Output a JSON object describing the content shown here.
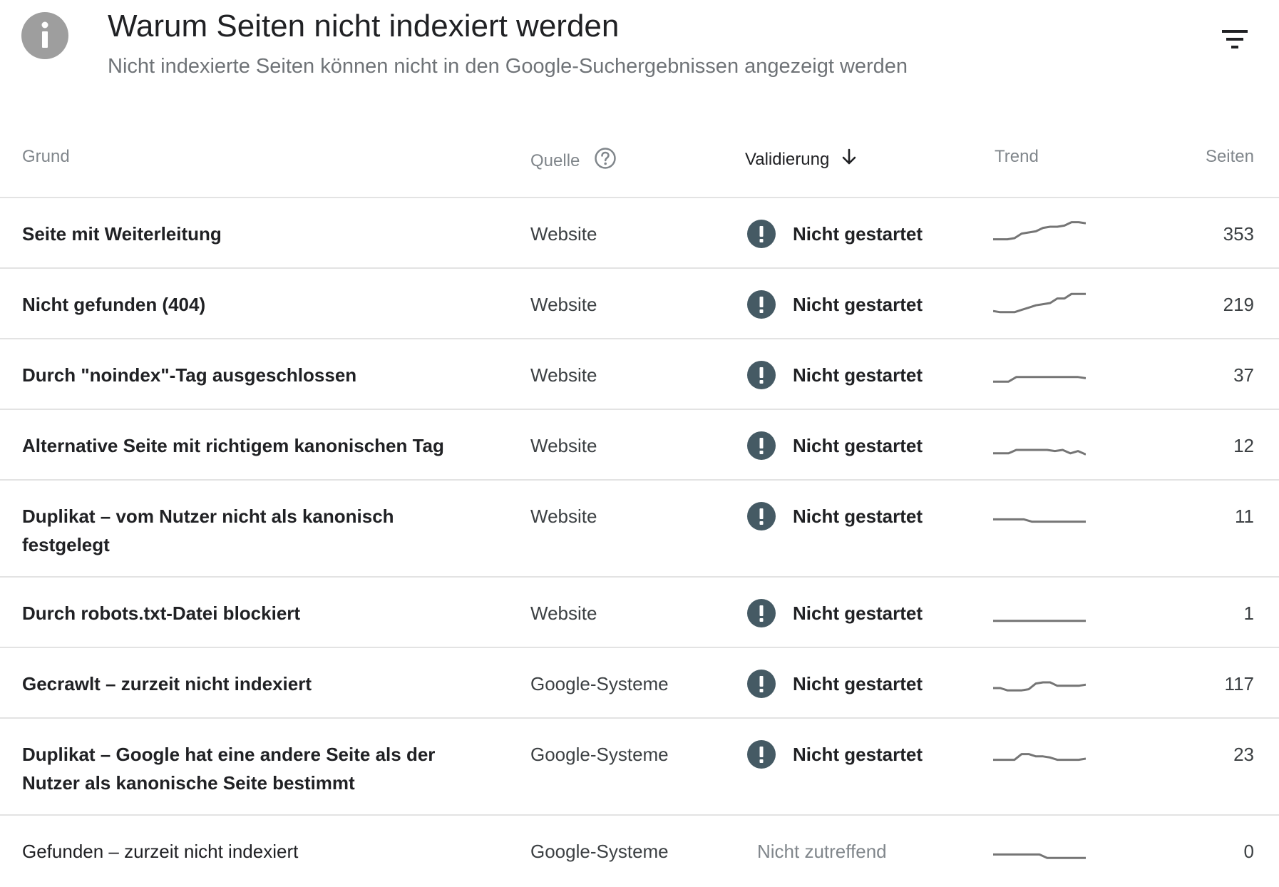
{
  "header": {
    "title": "Warum Seiten nicht indexiert werden",
    "subtitle": "Nicht indexierte Seiten können nicht in den Google-Suchergebnissen angezeigt werden"
  },
  "columns": {
    "grund": "Grund",
    "quelle": "Quelle",
    "validierung": "Validierung",
    "trend": "Trend",
    "seiten": "Seiten"
  },
  "rows": [
    {
      "grund": "Seite mit Weiterleitung",
      "quelle": "Website",
      "validierung": "Nicht gestartet",
      "seiten": "353",
      "trend": [
        0.2,
        0.2,
        0.2,
        0.25,
        0.45,
        0.5,
        0.55,
        0.7,
        0.75,
        0.75,
        0.8,
        0.95,
        0.95,
        0.9
      ]
    },
    {
      "grund": "Nicht gefunden (404)",
      "quelle": "Website",
      "validierung": "Nicht gestartet",
      "seiten": "219",
      "trend": [
        0.15,
        0.1,
        0.1,
        0.1,
        0.2,
        0.3,
        0.4,
        0.45,
        0.5,
        0.7,
        0.7,
        0.9,
        0.9,
        0.9
      ]
    },
    {
      "grund": "Durch \"noindex\"-Tag ausgeschlossen",
      "quelle": "Website",
      "validierung": "Nicht gestartet",
      "seiten": "37",
      "trend": [
        0.15,
        0.15,
        0.15,
        0.35,
        0.35,
        0.35,
        0.35,
        0.35,
        0.35,
        0.35,
        0.35,
        0.35,
        0.3
      ]
    },
    {
      "grund": "Alternative Seite mit richtigem kanonischen Tag",
      "quelle": "Website",
      "validierung": "Nicht gestartet",
      "seiten": "12",
      "trend": [
        0.1,
        0.1,
        0.1,
        0.25,
        0.25,
        0.25,
        0.25,
        0.25,
        0.2,
        0.25,
        0.1,
        0.2,
        0.05
      ]
    },
    {
      "grund": "Duplikat – vom Nutzer nicht als kanonisch festgelegt",
      "quelle": "Website",
      "validierung": "Nicht gestartet",
      "seiten": "11",
      "trend": [
        0.3,
        0.3,
        0.3,
        0.3,
        0.3,
        0.2,
        0.2,
        0.2,
        0.2,
        0.2,
        0.2,
        0.2,
        0.2
      ]
    },
    {
      "grund": "Durch robots.txt-Datei blockiert",
      "quelle": "Website",
      "validierung": "Nicht gestartet",
      "seiten": "1",
      "trend": [
        0.1,
        0.1,
        0.1,
        0.1,
        0.1,
        0.1,
        0.1,
        0.1,
        0.1,
        0.1,
        0.1,
        0.1,
        0.1
      ]
    },
    {
      "grund": "Gecrawlt – zurzeit nicht indexiert",
      "quelle": "Google-Systeme",
      "validierung": "Nicht gestartet",
      "seiten": "117",
      "trend": [
        0.25,
        0.25,
        0.15,
        0.15,
        0.15,
        0.2,
        0.45,
        0.5,
        0.5,
        0.35,
        0.35,
        0.35,
        0.35,
        0.4
      ]
    },
    {
      "grund": "Duplikat – Google hat eine andere Seite als der Nutzer als kanonische Seite bestimmt",
      "quelle": "Google-Systeme",
      "validierung": "Nicht gestartet",
      "seiten": "23",
      "trend": [
        0.2,
        0.2,
        0.2,
        0.2,
        0.45,
        0.45,
        0.35,
        0.35,
        0.3,
        0.2,
        0.2,
        0.2,
        0.2,
        0.25
      ]
    },
    {
      "grund": "Gefunden – zurzeit nicht indexiert",
      "quelle": "Google-Systeme",
      "validierung": "Nicht zutreffend",
      "seiten": "0",
      "trend": [
        0.3,
        0.3,
        0.3,
        0.3,
        0.3,
        0.3,
        0.3,
        0.15,
        0.15,
        0.15,
        0.15,
        0.15,
        0.15
      ]
    }
  ]
}
